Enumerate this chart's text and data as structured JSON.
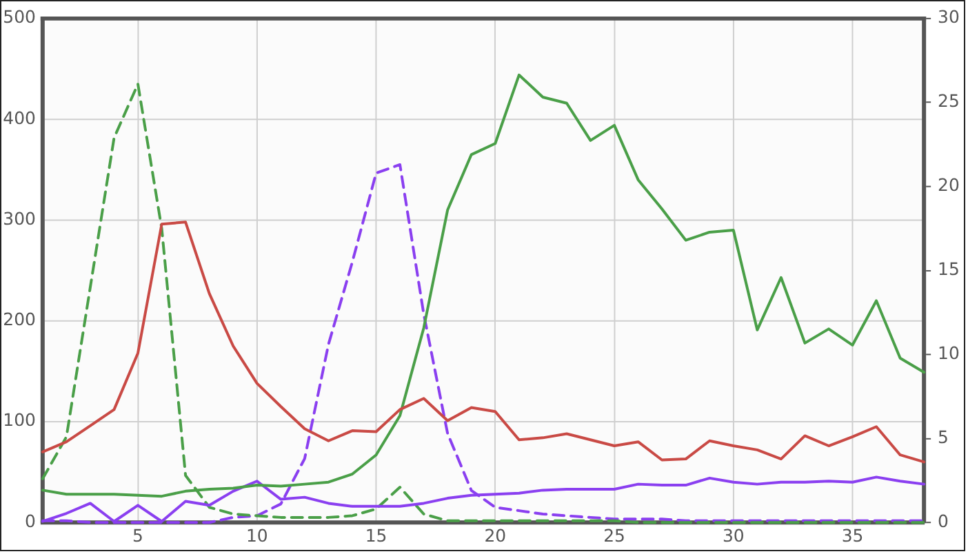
{
  "chart_data": {
    "type": "line",
    "x": [
      1,
      2,
      3,
      4,
      5,
      6,
      7,
      8,
      9,
      10,
      11,
      12,
      13,
      14,
      15,
      16,
      17,
      18,
      19,
      20,
      21,
      22,
      23,
      24,
      25,
      26,
      27,
      28,
      29,
      30,
      31,
      32,
      33,
      34,
      35,
      36,
      37,
      38
    ],
    "xlim": [
      1,
      38
    ],
    "xticks": [
      5,
      10,
      15,
      20,
      25,
      30,
      35
    ],
    "ylim": [
      0,
      500
    ],
    "yticks": [
      0,
      100,
      200,
      300,
      400,
      500
    ],
    "y2lim": [
      0,
      30
    ],
    "y2ticks": [
      0,
      5,
      10,
      15,
      20,
      25,
      30
    ],
    "grid": true,
    "legend": false,
    "marker": "none",
    "series": [
      {
        "color": "#c94a45",
        "line_style": "solid",
        "values": [
          70,
          80,
          96,
          112,
          168,
          296,
          298,
          227,
          175,
          138,
          115,
          93,
          81,
          91,
          90,
          112,
          123,
          101,
          114,
          110,
          82,
          84,
          88,
          82,
          76,
          80,
          62,
          63,
          81,
          76,
          72,
          63,
          86,
          76,
          85,
          95,
          67,
          60
        ]
      },
      {
        "color": "#4a9f48",
        "line_style": "solid",
        "values": [
          32,
          28,
          28,
          28,
          27,
          26,
          31,
          33,
          34,
          37,
          36,
          38,
          40,
          48,
          67,
          106,
          193,
          310,
          365,
          376,
          444,
          422,
          416,
          379,
          394,
          340,
          311,
          280,
          288,
          290,
          191,
          243,
          178,
          192,
          176,
          220,
          163,
          149
        ]
      },
      {
        "color": "#8a3ff0",
        "line_style": "solid",
        "values": [
          1,
          9,
          19,
          1,
          17,
          1,
          21,
          17,
          31,
          41,
          23,
          25,
          19,
          16,
          16,
          16,
          19,
          24,
          27,
          28,
          29,
          32,
          33,
          33,
          33,
          38,
          37,
          37,
          44,
          40,
          38,
          40,
          40,
          41,
          40,
          45,
          41,
          38
        ]
      },
      {
        "color": "#4a9f48",
        "line_style": "dashed",
        "axis": "y2",
        "values": [
          2.6,
          5.1,
          14,
          22.9,
          26.1,
          17.5,
          2.8,
          0.9,
          0.5,
          0.4,
          0.3,
          0.3,
          0.3,
          0.4,
          0.8,
          2.1,
          0.5,
          0.1,
          0.1,
          0.1,
          0.1,
          0.1,
          0.1,
          0.1,
          0.1,
          0,
          0,
          0,
          0,
          0,
          0,
          0,
          0,
          0,
          0,
          0,
          0,
          0
        ]
      },
      {
        "color": "#8a3ff0",
        "line_style": "dashed",
        "axis": "y2",
        "values": [
          0.1,
          0.1,
          0,
          0,
          0,
          0,
          0,
          0,
          0.3,
          0.4,
          1.1,
          3.8,
          10.6,
          15.5,
          20.8,
          21.3,
          12.4,
          5.3,
          1.9,
          0.9,
          0.7,
          0.5,
          0.4,
          0.3,
          0.2,
          0.2,
          0.2,
          0.1,
          0.1,
          0.1,
          0.1,
          0.1,
          0.1,
          0.1,
          0.1,
          0.1,
          0.1,
          0.1
        ]
      }
    ]
  }
}
